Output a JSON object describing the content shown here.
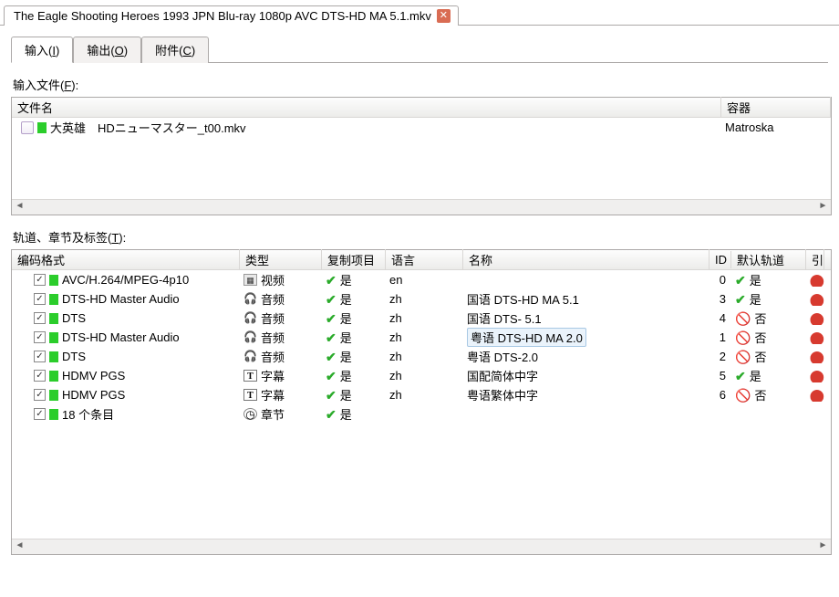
{
  "fileTab": {
    "title": "The Eagle Shooting Heroes 1993 JPN Blu-ray 1080p AVC DTS-HD MA 5.1.mkv"
  },
  "subTabs": {
    "input": "输入(I)",
    "output": "输出(O)",
    "attach": "附件(C)"
  },
  "labels": {
    "inputFiles": "输入文件(F):",
    "tracks": "轨道、章节及标签(T):"
  },
  "fileGrid": {
    "headers": {
      "name": "文件名",
      "container": "容器"
    },
    "rows": [
      {
        "name": "大英雄　HDニューマスター_t00.mkv",
        "container": "Matroska"
      }
    ]
  },
  "trackGrid": {
    "headers": {
      "codec": "编码格式",
      "type": "类型",
      "copy": "复制项目",
      "lang": "语言",
      "name": "名称",
      "id": "ID",
      "default": "默认轨道",
      "extra": "引"
    },
    "yes": "是",
    "no": "否",
    "types": {
      "video": "视频",
      "audio": "音频",
      "sub": "字幕",
      "chap": "章节"
    },
    "rows": [
      {
        "chk": true,
        "codec": "AVC/H.264/MPEG-4p10",
        "typeKey": "video",
        "copy": true,
        "lang": "en",
        "name": "",
        "id": 0,
        "def": "yes"
      },
      {
        "chk": true,
        "codec": "DTS-HD Master Audio",
        "typeKey": "audio",
        "copy": true,
        "lang": "zh",
        "name": "国语 DTS-HD MA 5.1",
        "id": 3,
        "def": "yes"
      },
      {
        "chk": true,
        "codec": "DTS",
        "typeKey": "audio",
        "copy": true,
        "lang": "zh",
        "name": "国语 DTS- 5.1",
        "id": 4,
        "def": "no"
      },
      {
        "chk": true,
        "codec": "DTS-HD Master Audio",
        "typeKey": "audio",
        "copy": true,
        "lang": "zh",
        "name": "粤语 DTS-HD MA 2.0",
        "id": 1,
        "def": "no",
        "selected": true
      },
      {
        "chk": true,
        "codec": "DTS",
        "typeKey": "audio",
        "copy": true,
        "lang": "zh",
        "name": "粤语 DTS-2.0",
        "id": 2,
        "def": "no"
      },
      {
        "chk": true,
        "codec": "HDMV PGS",
        "typeKey": "sub",
        "copy": true,
        "lang": "zh",
        "name": "国配简体中字",
        "id": 5,
        "def": "yes"
      },
      {
        "chk": true,
        "codec": "HDMV PGS",
        "typeKey": "sub",
        "copy": true,
        "lang": "zh",
        "name": "粤语繁体中字",
        "id": 6,
        "def": "no"
      },
      {
        "chk": true,
        "codec": "18 个条目",
        "typeKey": "chap",
        "copy": true,
        "lang": "",
        "name": "",
        "id": "",
        "def": ""
      }
    ]
  },
  "colors": {
    "green": "#2bcd2b",
    "tick": "#2bab2b",
    "forbid": "#d73a2f",
    "closeBtn": "#d96c53",
    "border": "#aca9a8"
  }
}
